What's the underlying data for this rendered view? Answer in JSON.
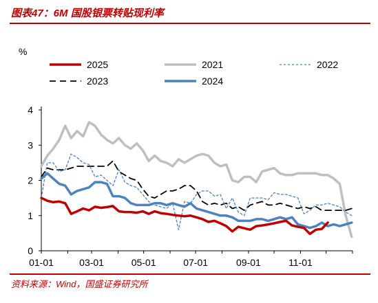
{
  "header": {
    "title": "图表47：6M 国股银票转贴现利率"
  },
  "footer": {
    "source": "资料来源：Wind，国盛证券研究所"
  },
  "chart_data": {
    "type": "line",
    "title": "图表47：6M 国股银票转贴现利率",
    "unit_label": "%",
    "x_ticks": [
      "01-01",
      "03-01",
      "05-01",
      "07-01",
      "09-01",
      "11-01"
    ],
    "ylim": [
      0,
      4
    ],
    "y_ticks": [
      0,
      1,
      2,
      3,
      4
    ],
    "grid": false,
    "legend_position": "top",
    "legend": [
      {
        "name": "2025",
        "key": "s2025"
      },
      {
        "name": "2021",
        "key": "s2021"
      },
      {
        "name": "2022",
        "key": "s2022"
      },
      {
        "name": "2023",
        "key": "s2023"
      },
      {
        "name": "2024",
        "key": "s2024"
      }
    ],
    "series": [
      {
        "key": "s2025",
        "name": "2025",
        "color": "#c00000",
        "style": "solid-thick",
        "x": [
          "01-01",
          "01-08",
          "01-15",
          "01-22",
          "01-29",
          "02-05",
          "02-12",
          "02-19",
          "02-26",
          "03-05",
          "03-12",
          "03-19",
          "03-26",
          "04-02",
          "04-09",
          "04-16",
          "04-23",
          "04-30",
          "05-07",
          "05-14",
          "05-21",
          "05-28",
          "06-04",
          "06-11",
          "06-18",
          "06-25",
          "07-02",
          "07-09",
          "07-16",
          "07-23",
          "07-30",
          "08-06",
          "08-13",
          "08-20",
          "08-27",
          "09-03",
          "09-10",
          "09-17",
          "09-24",
          "10-01",
          "10-08",
          "10-15",
          "10-22",
          "10-29",
          "11-05",
          "11-12",
          "11-19",
          "11-26",
          "12-03"
        ],
        "y": [
          1.5,
          1.42,
          1.38,
          1.4,
          1.35,
          1.05,
          1.12,
          1.2,
          1.15,
          1.25,
          1.22,
          1.24,
          1.27,
          1.12,
          1.1,
          1.1,
          1.08,
          1.12,
          1.05,
          1.12,
          1.07,
          1.05,
          1.02,
          1.0,
          0.98,
          1.0,
          0.95,
          0.9,
          0.82,
          0.85,
          0.78,
          0.7,
          0.55,
          0.68,
          0.64,
          0.6,
          0.7,
          0.72,
          0.75,
          0.78,
          0.82,
          0.85,
          0.72,
          0.68,
          0.65,
          0.48,
          0.6,
          0.62,
          0.8
        ]
      },
      {
        "key": "s2021",
        "name": "2021",
        "color": "#bfbfbf",
        "style": "solid-thick",
        "x": [
          "01-01",
          "01-08",
          "01-15",
          "01-22",
          "01-29",
          "02-05",
          "02-12",
          "02-19",
          "02-26",
          "03-05",
          "03-12",
          "03-19",
          "03-26",
          "04-02",
          "04-09",
          "04-16",
          "04-23",
          "04-30",
          "05-07",
          "05-14",
          "05-21",
          "05-28",
          "06-04",
          "06-11",
          "06-18",
          "06-25",
          "07-02",
          "07-09",
          "07-16",
          "07-23",
          "07-30",
          "08-06",
          "08-13",
          "08-20",
          "08-27",
          "09-03",
          "09-10",
          "09-17",
          "09-24",
          "10-01",
          "10-08",
          "10-15",
          "10-22",
          "10-29",
          "11-05",
          "11-12",
          "11-19",
          "11-26",
          "12-03",
          "12-10",
          "12-17",
          "12-24",
          "12-31"
        ],
        "y": [
          2.4,
          2.7,
          2.9,
          3.15,
          3.55,
          3.2,
          3.4,
          3.25,
          3.65,
          3.55,
          3.3,
          3.15,
          3.05,
          3.2,
          3.0,
          2.9,
          3.05,
          2.85,
          2.55,
          2.7,
          2.55,
          2.5,
          2.4,
          2.6,
          2.5,
          2.6,
          2.7,
          2.75,
          2.7,
          2.5,
          2.4,
          2.45,
          2.0,
          1.95,
          2.1,
          2.1,
          1.95,
          2.25,
          2.3,
          2.35,
          2.2,
          2.15,
          2.15,
          2.2,
          2.2,
          2.2,
          2.2,
          2.15,
          2.15,
          2.05,
          1.9,
          1.0,
          0.4
        ]
      },
      {
        "key": "s2022",
        "name": "2022",
        "color": "#4f81bd",
        "style": "dotted",
        "x": [
          "01-01",
          "01-08",
          "01-15",
          "01-22",
          "01-29",
          "02-05",
          "02-12",
          "02-19",
          "02-26",
          "03-05",
          "03-12",
          "03-19",
          "03-26",
          "04-02",
          "04-09",
          "04-16",
          "04-23",
          "04-30",
          "05-07",
          "05-14",
          "05-21",
          "05-28",
          "06-04",
          "06-11",
          "06-18",
          "06-25",
          "07-02",
          "07-09",
          "07-16",
          "07-23",
          "07-30",
          "08-06",
          "08-13",
          "08-20",
          "08-27",
          "09-03",
          "09-10",
          "09-17",
          "09-24",
          "10-01",
          "10-08",
          "10-15",
          "10-22",
          "10-29",
          "11-05",
          "11-12",
          "11-19",
          "11-26",
          "12-03",
          "12-10",
          "12-17",
          "12-24",
          "12-31"
        ],
        "y": [
          1.5,
          2.5,
          2.5,
          2.25,
          2.3,
          2.75,
          2.65,
          2.5,
          2.45,
          2.1,
          2.15,
          2.0,
          1.85,
          2.3,
          1.95,
          1.85,
          1.8,
          1.6,
          1.4,
          1.3,
          1.25,
          1.2,
          1.35,
          0.6,
          1.4,
          1.35,
          1.6,
          1.7,
          1.7,
          1.55,
          1.6,
          1.2,
          1.5,
          1.1,
          1.0,
          1.5,
          1.5,
          1.5,
          1.45,
          1.65,
          1.6,
          1.6,
          1.55,
          1.5,
          1.05,
          1.15,
          1.3,
          1.3,
          1.35,
          1.3,
          1.25,
          1.1,
          1.0
        ]
      },
      {
        "key": "s2023",
        "name": "2023",
        "color": "#000000",
        "style": "dashed",
        "x": [
          "01-01",
          "01-08",
          "01-15",
          "01-22",
          "01-29",
          "02-05",
          "02-12",
          "02-19",
          "02-26",
          "03-05",
          "03-12",
          "03-19",
          "03-26",
          "04-02",
          "04-09",
          "04-16",
          "04-23",
          "04-30",
          "05-07",
          "05-14",
          "05-21",
          "05-28",
          "06-04",
          "06-11",
          "06-18",
          "06-25",
          "07-02",
          "07-09",
          "07-16",
          "07-23",
          "07-30",
          "08-06",
          "08-13",
          "08-20",
          "08-27",
          "09-03",
          "09-10",
          "09-17",
          "09-24",
          "10-01",
          "10-08",
          "10-15",
          "10-22",
          "10-29",
          "11-05",
          "11-12",
          "11-19",
          "11-26",
          "12-03",
          "12-10",
          "12-17",
          "12-24",
          "12-31"
        ],
        "y": [
          2.1,
          2.35,
          2.3,
          2.3,
          2.3,
          2.35,
          2.4,
          2.4,
          2.4,
          2.4,
          2.4,
          2.4,
          2.55,
          2.25,
          2.15,
          2.05,
          2.0,
          1.75,
          1.55,
          1.5,
          1.6,
          1.7,
          1.7,
          1.75,
          1.85,
          1.85,
          1.7,
          1.4,
          1.3,
          1.35,
          1.3,
          1.35,
          1.2,
          1.25,
          1.15,
          1.3,
          1.35,
          1.4,
          1.3,
          1.3,
          1.35,
          1.3,
          1.25,
          1.2,
          1.25,
          1.2,
          1.25,
          1.15,
          1.15,
          1.15,
          1.15,
          1.15,
          1.2
        ]
      },
      {
        "key": "s2024",
        "name": "2024",
        "color": "#4f81bd",
        "style": "solid-thick",
        "x": [
          "01-01",
          "01-08",
          "01-15",
          "01-22",
          "01-29",
          "02-05",
          "02-12",
          "02-19",
          "02-26",
          "03-05",
          "03-12",
          "03-19",
          "03-26",
          "04-02",
          "04-09",
          "04-16",
          "04-23",
          "04-30",
          "05-07",
          "05-14",
          "05-21",
          "05-28",
          "06-04",
          "06-11",
          "06-18",
          "06-25",
          "07-02",
          "07-09",
          "07-16",
          "07-23",
          "07-30",
          "08-06",
          "08-13",
          "08-20",
          "08-27",
          "09-03",
          "09-10",
          "09-17",
          "09-24",
          "10-01",
          "10-08",
          "10-15",
          "10-22",
          "10-29",
          "11-05",
          "11-12",
          "11-19",
          "11-26",
          "12-03",
          "12-10",
          "12-17",
          "12-24",
          "12-31"
        ],
        "y": [
          2.05,
          2.2,
          2.05,
          1.9,
          1.85,
          1.6,
          1.7,
          1.75,
          1.8,
          1.95,
          1.95,
          1.9,
          1.55,
          1.55,
          1.5,
          1.35,
          1.3,
          1.3,
          1.3,
          1.35,
          1.35,
          1.3,
          1.35,
          1.3,
          1.25,
          1.35,
          1.2,
          1.15,
          1.1,
          1.05,
          1.0,
          1.0,
          0.95,
          0.85,
          0.85,
          0.85,
          0.9,
          0.9,
          0.85,
          0.9,
          0.95,
          0.9,
          0.95,
          0.75,
          0.7,
          0.65,
          0.7,
          0.8,
          0.7,
          0.75,
          0.7,
          0.75,
          0.8
        ]
      }
    ]
  }
}
